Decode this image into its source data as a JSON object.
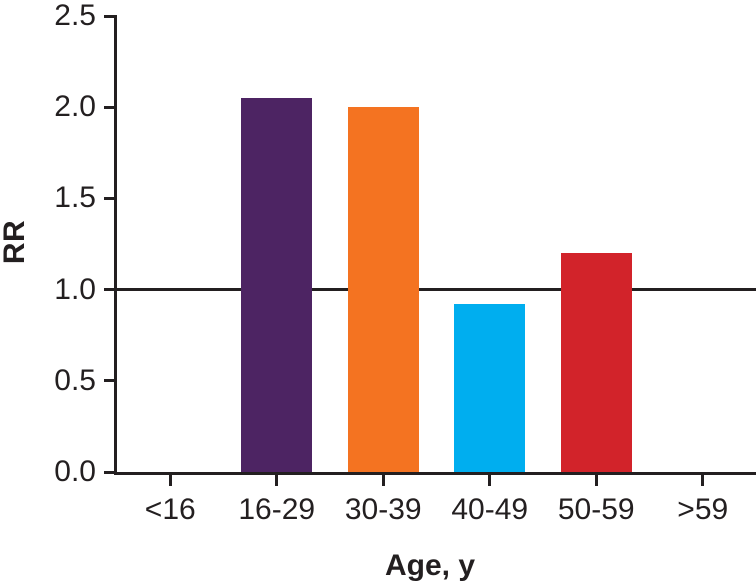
{
  "chart_data": {
    "type": "bar",
    "categories": [
      "<16",
      "16-29",
      "30-39",
      "40-49",
      "50-59",
      ">59"
    ],
    "values": [
      0,
      2.05,
      2.0,
      0.92,
      1.2,
      0
    ],
    "bar_colors": [
      null,
      "#4D2463",
      "#F47321",
      "#00AEEF",
      "#D2232A",
      null
    ],
    "title": "",
    "xlabel": "Age, y",
    "ylabel": "RR",
    "ylim": [
      0,
      2.5
    ],
    "yticks": [
      "0.0",
      "0.5",
      "1.0",
      "1.5",
      "2.0",
      "2.5"
    ],
    "reference_line": 1.0,
    "grid": false,
    "legend": "none",
    "axis_color": "#231F20",
    "background": "#FFFFFF"
  }
}
